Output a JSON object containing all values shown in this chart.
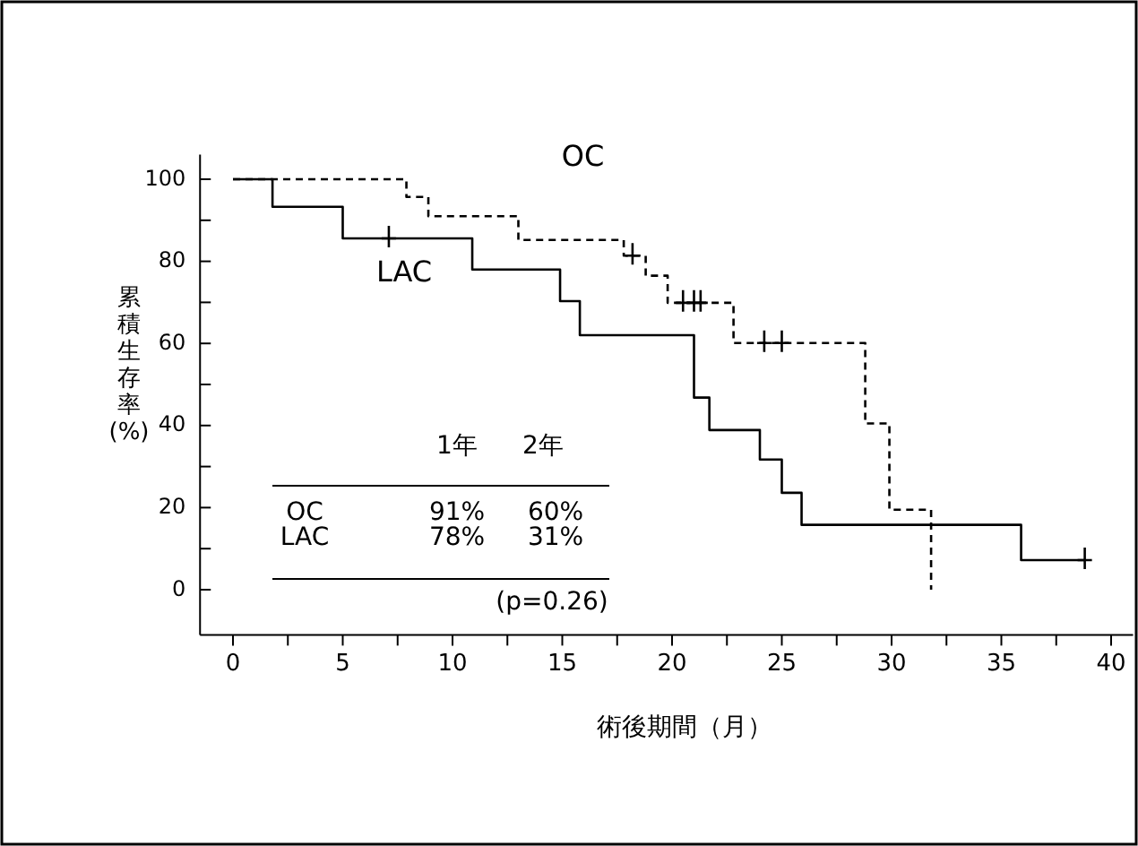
{
  "chart_data": {
    "type": "step",
    "xlabel": "術後期間（月）",
    "ylabel": "累積生存率\n(%)",
    "xlim": [
      -1.5,
      41
    ],
    "ylim": [
      -11,
      106
    ],
    "xticks": [
      0,
      {
        "value": 2.5,
        "label": null
      },
      5,
      {
        "value": 7.5,
        "label": null
      },
      10,
      {
        "value": 12.5,
        "label": null
      },
      15,
      {
        "value": 17.5,
        "label": null
      },
      20,
      {
        "value": 22.5,
        "label": null
      },
      25,
      {
        "value": 27.5,
        "label": null
      },
      30,
      {
        "value": 32.5,
        "label": null
      },
      35,
      {
        "value": 37.5,
        "label": null
      },
      40
    ],
    "yticks": [
      0,
      {
        "value": 10,
        "label": null
      },
      20,
      {
        "value": 30,
        "label": null
      },
      40,
      {
        "value": 50,
        "label": null
      },
      60,
      {
        "value": 70,
        "label": null
      },
      80,
      {
        "value": 90,
        "label": null
      },
      100
    ],
    "grid": false,
    "series": [
      {
        "name": "OC",
        "line_style": "dashed",
        "color": "#000000",
        "x": [
          0,
          7.9,
          8.9,
          13,
          17.8,
          18.8,
          19.8,
          22.8,
          28.8,
          29.9,
          31.8
        ],
        "values": [
          100,
          95.7,
          91,
          85.2,
          81.4,
          76.5,
          69.9,
          60.1,
          40.5,
          19.5,
          0
        ]
      },
      {
        "name": "LAC",
        "line_style": "solid",
        "color": "#000000",
        "x": [
          0,
          1.8,
          5,
          10.9,
          14.9,
          15.8,
          21,
          21.7,
          24,
          25,
          25.9,
          35.9,
          38.8
        ],
        "values": [
          100,
          93.3,
          85.6,
          78,
          70.3,
          62,
          46.8,
          38.9,
          31.7,
          23.6,
          15.8,
          7.2,
          7.2
        ]
      },
      {
        "type": "scatter",
        "marker": "cross",
        "color": "#000000",
        "x": [
          18.2,
          20.5,
          21,
          21.3,
          24.2,
          25
        ],
        "values": [
          81.4,
          69.9,
          69.9,
          69.9,
          60.1,
          60.1
        ]
      },
      {
        "type": "scatter",
        "marker": "cross",
        "color": "#000000",
        "x": [
          7.1,
          38.8
        ],
        "values": [
          85.6,
          7.2
        ]
      }
    ],
    "annotations": [
      "1年 2年",
      "OC 91% 60%",
      "LAC 78% 31%",
      "(p=0.26)"
    ]
  }
}
